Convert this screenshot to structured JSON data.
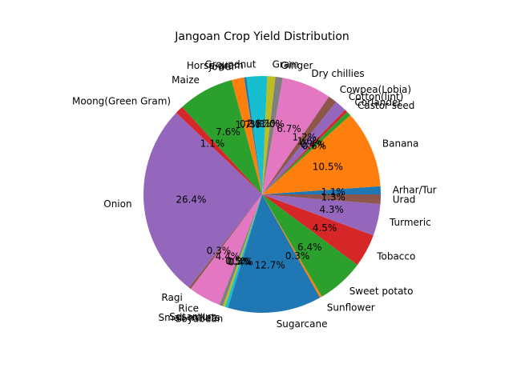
{
  "chart_data": {
    "type": "pie",
    "title": "Jangoan Crop Yield Distribution",
    "start_angle_deg": 0,
    "direction": "counterclockwise",
    "colors": [
      "#1f77b4",
      "#ff7f0e",
      "#2ca02c",
      "#d62728",
      "#9467bd",
      "#8c564b",
      "#e377c2",
      "#7f7f7f",
      "#bcbd22",
      "#17becf"
    ],
    "slices": [
      {
        "label": "Arhar/Tur",
        "value": 1.1,
        "pct_label": "1.1%"
      },
      {
        "label": "Banana",
        "value": 10.5,
        "pct_label": "10.5%"
      },
      {
        "label": "Castor seed",
        "value": 0.6,
        "pct_label": "0.6%"
      },
      {
        "label": "Coriander",
        "value": 0.4,
        "pct_label": "0.4%"
      },
      {
        "label": "Cotton(lint)",
        "value": 1.6,
        "pct_label": "1.6%"
      },
      {
        "label": "Cowpea(Lobia)",
        "value": 1.2,
        "pct_label": "1.2%"
      },
      {
        "label": "Dry chillies",
        "value": 6.7,
        "pct_label": "6.7%"
      },
      {
        "label": "Ginger",
        "value": 1.0,
        "pct_label": "1.0%"
      },
      {
        "label": "Gram",
        "value": 1.1,
        "pct_label": "1.1%"
      },
      {
        "label": "Groundnut",
        "value": 2.8,
        "pct_label": "2.8%"
      },
      {
        "label": "Horse-gram",
        "value": 0.3,
        "pct_label": "0.3%"
      },
      {
        "label": "Jowar",
        "value": 1.7,
        "pct_label": "1.7%"
      },
      {
        "label": "Maize",
        "value": 7.6,
        "pct_label": "7.6%"
      },
      {
        "label": "Moong(Green Gram)",
        "value": 1.1,
        "pct_label": "1.1%"
      },
      {
        "label": "Onion",
        "value": 26.4,
        "pct_label": "26.4%"
      },
      {
        "label": "Ragi",
        "value": 0.3,
        "pct_label": "0.3%"
      },
      {
        "label": "Rice",
        "value": 4.4,
        "pct_label": "4.4%"
      },
      {
        "label": "Sesamum",
        "value": 0.5,
        "pct_label": "0.5%"
      },
      {
        "label": "Small millets",
        "value": 0.3,
        "pct_label": "0.3%"
      },
      {
        "label": "Soyabean",
        "value": 0.4,
        "pct_label": "0.4%"
      },
      {
        "label": "Sugarcane",
        "value": 12.7,
        "pct_label": "12.7%"
      },
      {
        "label": "Sunflower",
        "value": 0.3,
        "pct_label": "0.3%"
      },
      {
        "label": "Sweet potato",
        "value": 6.4,
        "pct_label": "6.4%"
      },
      {
        "label": "Tobacco",
        "value": 4.5,
        "pct_label": "4.5%"
      },
      {
        "label": "Turmeric",
        "value": 4.3,
        "pct_label": "4.3%"
      },
      {
        "label": "Urad",
        "value": 1.3,
        "pct_label": "1.3%"
      }
    ]
  }
}
